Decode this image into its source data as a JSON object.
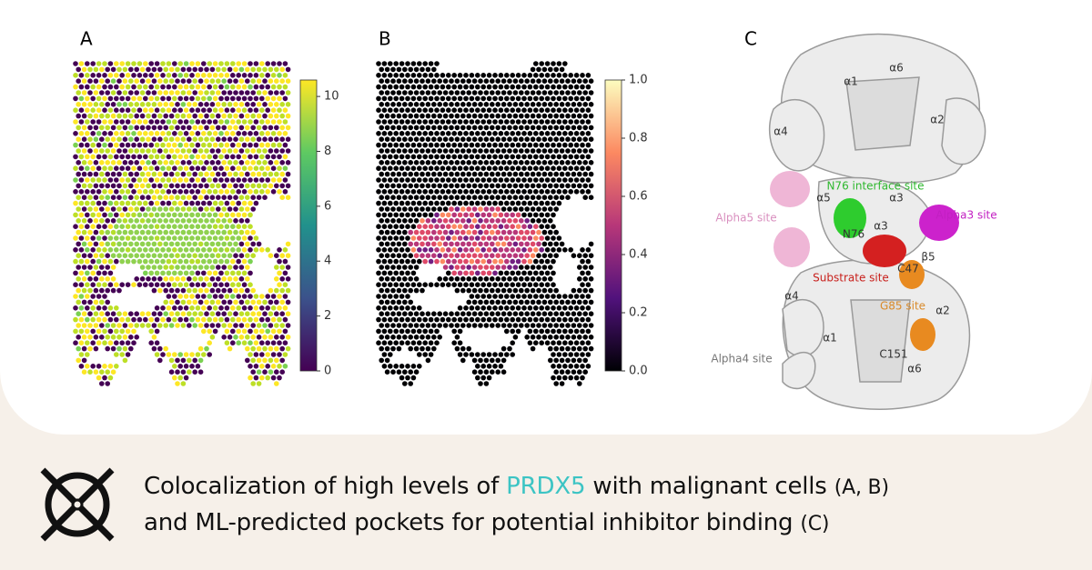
{
  "panels": [
    {
      "label": "A",
      "colorbar": {
        "ylim": [
          0,
          10.6
        ],
        "yticks": [
          0,
          2,
          4,
          6,
          8,
          10
        ]
      }
    },
    {
      "label": "B",
      "colorbar": {
        "ylim": [
          0,
          1
        ],
        "yticks": [
          {
            "value": 0,
            "label": "0.0"
          },
          0.2,
          0.4,
          0.6,
          0.8,
          {
            "value": 1,
            "label": "1.0"
          }
        ]
      }
    }
  ],
  "structure": {
    "label": "C",
    "annotations": [
      {
        "text": "α6",
        "color": "#333333"
      },
      {
        "text": "α1",
        "color": "#333333"
      },
      {
        "text": "α2",
        "color": "#333333"
      },
      {
        "text": "α4",
        "color": "#333333"
      },
      {
        "text": "N76 interface site",
        "color": "#2fb82f"
      },
      {
        "text": "α5",
        "color": "#333333"
      },
      {
        "text": "α3",
        "color": "#333333"
      },
      {
        "text": "Alpha5 site",
        "color": "#d98fbf"
      },
      {
        "text": "Alpha3 site",
        "color": "#c21fc2"
      },
      {
        "text": "N76",
        "color": "#333333"
      },
      {
        "text": "α3",
        "color": "#333333"
      },
      {
        "text": "C47",
        "color": "#333333"
      },
      {
        "text": "β5",
        "color": "#333333"
      },
      {
        "text": "Substrate site",
        "color": "#c8201c"
      },
      {
        "text": "α4",
        "color": "#333333"
      },
      {
        "text": "G85 site",
        "color": "#d98a2a"
      },
      {
        "text": "α2",
        "color": "#333333"
      },
      {
        "text": "α1",
        "color": "#333333"
      },
      {
        "text": "Alpha4 site",
        "color": "#777777"
      },
      {
        "text": "C151",
        "color": "#333333"
      },
      {
        "text": "α6",
        "color": "#333333"
      }
    ]
  },
  "caption": {
    "line1": [
      "Colocalization of high levels of",
      "PRDX5",
      "with malignant cells",
      "(A, B)"
    ],
    "line2": [
      "and ML-predicted pockets for potential inhibitor binding",
      "(C)"
    ],
    "highlight_color": "#3cc4c4"
  }
}
